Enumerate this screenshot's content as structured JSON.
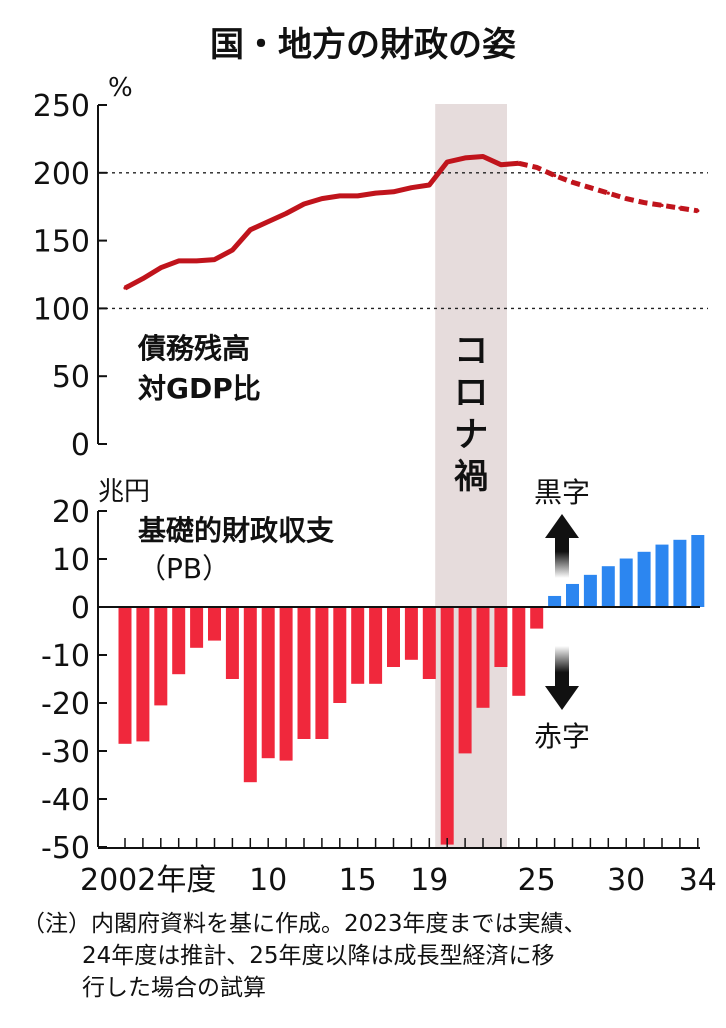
{
  "title": "国・地方の財政の姿",
  "event_band_label": "コロナ禍",
  "note_lines": [
    "（注）内閣府資料を基に作成。2023年度までは実績、",
    "24年度は推計、25年度以降は成長型経済に移",
    "行した場合の試算"
  ],
  "surplus_label": "黒字",
  "deficit_label": "赤字",
  "colors": {
    "debt_line": "#c0141c",
    "deficit_bar": "#f0283c",
    "surplus_bar": "#2c86f0",
    "band": "#e6dcdc",
    "axis": "#111111"
  },
  "chart_data": [
    {
      "type": "line",
      "unit_label": "%",
      "series_label_lines": [
        "債務残高",
        "対GDP比"
      ],
      "x": [
        2002,
        2003,
        2004,
        2005,
        2006,
        2007,
        2008,
        2009,
        2010,
        2011,
        2012,
        2013,
        2014,
        2015,
        2016,
        2017,
        2018,
        2019,
        2020,
        2021,
        2022,
        2023,
        2024,
        2025,
        2026,
        2027,
        2028,
        2029,
        2030,
        2031,
        2032,
        2033,
        2034
      ],
      "values": [
        115,
        122,
        130,
        135,
        135,
        136,
        143,
        158,
        164,
        170,
        177,
        181,
        183,
        183,
        185,
        186,
        189,
        191,
        208,
        211,
        212,
        206,
        207,
        204,
        198,
        193,
        189,
        185,
        181,
        178,
        176,
        174,
        172
      ],
      "actual_through": 2024,
      "projected_from": 2024,
      "ylim": [
        0,
        250
      ],
      "yticks": [
        0,
        50,
        100,
        150,
        200,
        250
      ],
      "ytick_labels": [
        "0",
        "50",
        "100",
        "150",
        "200",
        "250"
      ],
      "dashed_gridlines": [
        100,
        200
      ]
    },
    {
      "type": "bar",
      "unit_label": "兆円",
      "series_label_lines": [
        "基礎的財政収支",
        "（PB）"
      ],
      "x": [
        2002,
        2003,
        2004,
        2005,
        2006,
        2007,
        2008,
        2009,
        2010,
        2011,
        2012,
        2013,
        2014,
        2015,
        2016,
        2017,
        2018,
        2019,
        2020,
        2021,
        2022,
        2023,
        2024,
        2025,
        2026,
        2027,
        2028,
        2029,
        2030,
        2031,
        2032,
        2033,
        2034
      ],
      "values": [
        -28.5,
        -28,
        -20.5,
        -14,
        -8.5,
        -7,
        -15,
        -36.5,
        -31.5,
        -32,
        -27.5,
        -27.5,
        -20,
        -16,
        -16,
        -12.5,
        -11,
        -15,
        -49.5,
        -30.5,
        -21,
        -12.5,
        -18.5,
        -4.5,
        2.3,
        4.8,
        6.7,
        8.5,
        10.1,
        11.5,
        13,
        14,
        15
      ],
      "ylim": [
        -50,
        20
      ],
      "yticks": [
        -50,
        -40,
        -30,
        -20,
        -10,
        0,
        10,
        20
      ],
      "ytick_labels": [
        "-50",
        "-40",
        "-30",
        "-20",
        "-10",
        "0",
        "10",
        "20"
      ]
    }
  ],
  "x_axis": {
    "tick_years": [
      2002,
      2010,
      2015,
      2019,
      2025,
      2030,
      2034
    ],
    "tick_labels": [
      "2002年度",
      "10",
      "15",
      "19",
      "25",
      "30",
      "34"
    ]
  },
  "event_band_years": [
    2020,
    2022
  ]
}
